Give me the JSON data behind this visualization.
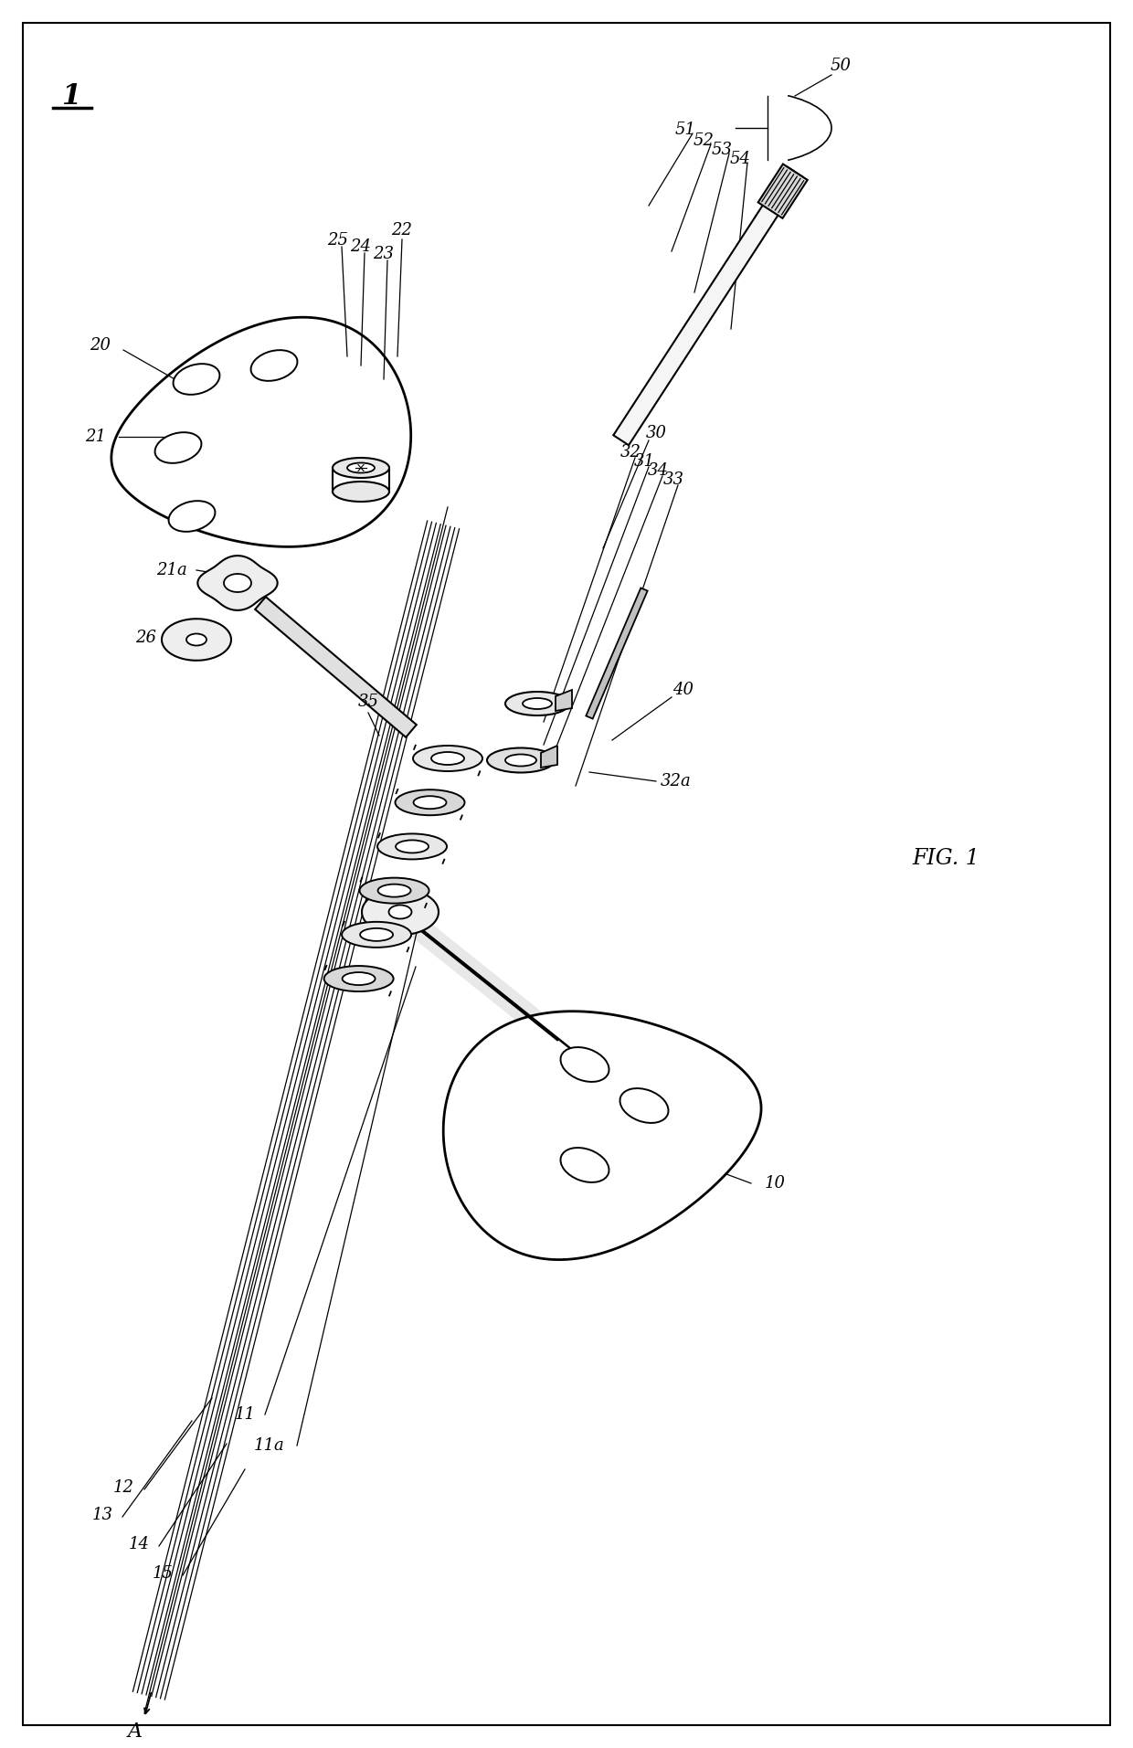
{
  "background_color": "#ffffff",
  "line_color": "#000000",
  "fig_width": 12.4,
  "fig_height": 19.13,
  "dpi": 100,
  "labels": [
    "1",
    "A",
    "10",
    "11",
    "11a",
    "12",
    "13",
    "14",
    "15",
    "20",
    "21",
    "21a",
    "22",
    "23",
    "24",
    "25",
    "26",
    "30",
    "31",
    "32",
    "32a",
    "33",
    "34",
    "35",
    "40",
    "50",
    "51",
    "52",
    "53",
    "54",
    "FIG. 1"
  ]
}
